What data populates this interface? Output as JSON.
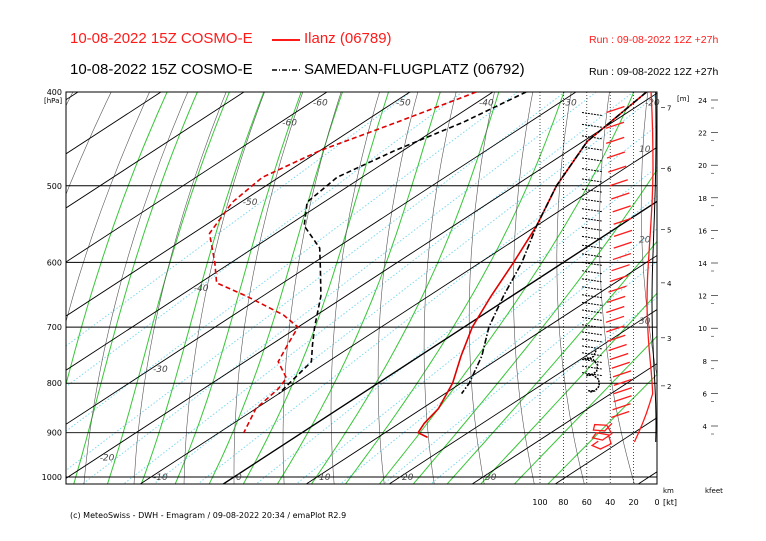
{
  "header": {
    "line1_date": "10-08-2022 15Z COSMO-E",
    "line1_station": "Ilanz (06789)",
    "line1_run": "Run : 09-08-2022 12Z +27h",
    "line2_date": "10-08-2022 15Z COSMO-E",
    "line2_station": "SAMEDAN-FLUGPLATZ (06792)",
    "line2_run": "Run : 09-08-2022 12Z +27h",
    "red": "#ff1a1a",
    "black": "#000000"
  },
  "footer": {
    "credit": "(c) MeteoSwiss - DWH - Emagram / 09-08-2022 20:34 / emaPlot R2.9"
  },
  "chart_data": {
    "type": "line",
    "pressure_label_unit": "[hPa]",
    "pressure_levels": [
      {
        "p": 400,
        "label": "400"
      },
      {
        "p": 500,
        "label": "500"
      },
      {
        "p": 600,
        "label": "600"
      },
      {
        "p": 700,
        "label": "700"
      },
      {
        "p": 800,
        "label": "800"
      },
      {
        "p": 900,
        "label": "900"
      },
      {
        "p": 1000,
        "label": "1000"
      }
    ],
    "ylim": [
      1020,
      400
    ],
    "xlim_temperature": [
      -50,
      40
    ],
    "skew_degC_per_unit_logp": 77.7,
    "temperature_ticks": [
      {
        "t": -60,
        "label": "-60",
        "p": 410
      },
      {
        "t": -50,
        "label": "-50",
        "p": 410
      },
      {
        "t": -40,
        "label": "-40",
        "p": 410
      },
      {
        "t": -30,
        "label": "-30",
        "p": 410
      },
      {
        "t": -20,
        "label": "-20",
        "p": 410
      },
      {
        "t": -60,
        "label": "-60",
        "p": 430
      },
      {
        "t": -50,
        "label": "-50",
        "p": 520
      },
      {
        "t": -40,
        "label": "-40",
        "p": 638
      },
      {
        "t": -30,
        "label": "-30",
        "p": 773
      },
      {
        "t": -20,
        "label": "-20",
        "p": 955
      },
      {
        "t": -10,
        "label": "-10",
        "p": 1000
      },
      {
        "t": 0,
        "label": "0",
        "p": 1000
      },
      {
        "t": 10,
        "label": "10",
        "p": 1000
      },
      {
        "t": 20,
        "label": "20",
        "p": 1000
      },
      {
        "t": 30,
        "label": "30",
        "p": 1000
      }
    ],
    "height_axis_m_label": "[m]",
    "height_ticks_km": [
      {
        "km": 7,
        "p": 415,
        "label": "7"
      },
      {
        "km": 6,
        "p": 480,
        "label": "6"
      },
      {
        "km": 5,
        "p": 555,
        "label": "5"
      },
      {
        "km": 4,
        "p": 630,
        "label": "4"
      },
      {
        "km": 3,
        "p": 718,
        "label": "3"
      },
      {
        "km": 2,
        "p": 805,
        "label": "2"
      }
    ],
    "km_label": "km",
    "height_axis_kfeet_label": "kfeet",
    "height_ticks_kfeet": [
      {
        "v": 24,
        "label": "24"
      },
      {
        "v": 22,
        "label": "22"
      },
      {
        "v": 20,
        "label": "20"
      },
      {
        "v": 18,
        "label": "18"
      },
      {
        "v": 16,
        "label": "16"
      },
      {
        "v": 14,
        "label": "14"
      },
      {
        "v": 12,
        "label": "12"
      },
      {
        "v": 10,
        "label": "10"
      },
      {
        "v": 8,
        "label": "8"
      },
      {
        "v": 6,
        "label": "6"
      },
      {
        "v": 4,
        "label": "4"
      }
    ],
    "wind_axis_unit": "[kt]",
    "wind_ticks": [
      {
        "kt": 100,
        "label": "100"
      },
      {
        "kt": 80,
        "label": "80"
      },
      {
        "kt": 60,
        "label": "60"
      },
      {
        "kt": 40,
        "label": "40"
      },
      {
        "kt": 20,
        "label": "20"
      },
      {
        "kt": 0,
        "label": "0"
      }
    ],
    "wind_panel_labels": [
      {
        "label": "10",
        "p": 458
      },
      {
        "label": "20",
        "p": 568
      },
      {
        "label": "30",
        "p": 690
      }
    ],
    "series": [
      {
        "name": "Ilanz (06789)",
        "variable": "temperature",
        "color": "#e00000",
        "style": "solid",
        "points": [
          [
            400,
            -21.5
          ],
          [
            450,
            -19.5
          ],
          [
            500,
            -15
          ],
          [
            550,
            -10
          ],
          [
            600,
            -6
          ],
          [
            650,
            -2.5
          ],
          [
            700,
            1
          ],
          [
            750,
            5
          ],
          [
            800,
            9
          ],
          [
            850,
            12
          ],
          [
            880,
            13
          ],
          [
            900,
            14
          ],
          [
            910,
            16
          ]
        ]
      },
      {
        "name": "Ilanz (06789)",
        "variable": "dewpoint",
        "color": "#e00000",
        "style": "dashed",
        "points": [
          [
            400,
            -42
          ],
          [
            430,
            -46
          ],
          [
            460,
            -50
          ],
          [
            490,
            -52
          ],
          [
            520,
            -51
          ],
          [
            560,
            -48
          ],
          [
            600,
            -42
          ],
          [
            630,
            -38
          ],
          [
            650,
            -32
          ],
          [
            680,
            -24
          ],
          [
            700,
            -20
          ],
          [
            730,
            -18
          ],
          [
            760,
            -16
          ],
          [
            790,
            -12
          ],
          [
            810,
            -11
          ],
          [
            850,
            -10
          ],
          [
            900,
            -7
          ]
        ]
      },
      {
        "name": "SAMEDAN-FLUGPLATZ (06792)",
        "variable": "temperature",
        "color": "#000000",
        "style": "dashdot",
        "points": [
          [
            400,
            -21.5
          ],
          [
            450,
            -19.5
          ],
          [
            500,
            -15
          ],
          [
            550,
            -10
          ],
          [
            600,
            -5
          ],
          [
            650,
            -1
          ],
          [
            700,
            3
          ],
          [
            750,
            7.5
          ],
          [
            800,
            11
          ],
          [
            820,
            12
          ]
        ]
      },
      {
        "name": "SAMEDAN-FLUGPLATZ (06792)",
        "variable": "dewpoint",
        "color": "#000000",
        "style": "dashed",
        "points": [
          [
            400,
            -36
          ],
          [
            430,
            -38
          ],
          [
            460,
            -41
          ],
          [
            490,
            -43
          ],
          [
            520,
            -42
          ],
          [
            550,
            -38
          ],
          [
            580,
            -32
          ],
          [
            610,
            -28
          ],
          [
            650,
            -23
          ],
          [
            700,
            -18
          ],
          [
            730,
            -15
          ],
          [
            760,
            -12
          ],
          [
            790,
            -11
          ],
          [
            820,
            -10
          ]
        ]
      }
    ]
  }
}
